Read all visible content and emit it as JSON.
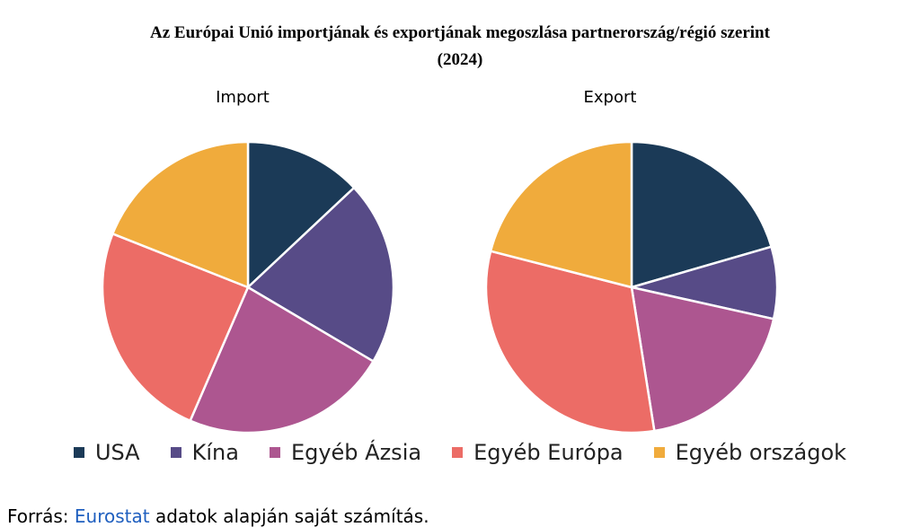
{
  "chart_data": {
    "type": "pie",
    "title": "Az Európai Unió importjának és exportjának megoszlása partnerország/régió szerint",
    "subtitle": "(2024)",
    "categories": [
      "USA",
      "Kína",
      "Egyéb Ázsia",
      "Egyéb Európa",
      "Egyéb országok"
    ],
    "colors": [
      "#1b3a57",
      "#574b87",
      "#ad5690",
      "#ec6c66",
      "#f0ab3c"
    ],
    "pies": [
      {
        "title": "Import",
        "values": [
          13,
          20.5,
          23,
          24.5,
          19
        ]
      },
      {
        "title": "Export",
        "values": [
          20.5,
          8,
          19,
          31.5,
          21
        ]
      }
    ],
    "legend_position": "bottom"
  },
  "source": {
    "prefix": "Forrás:",
    "link_text": "Eurostat",
    "suffix": "adatok alapján saját számítás."
  }
}
